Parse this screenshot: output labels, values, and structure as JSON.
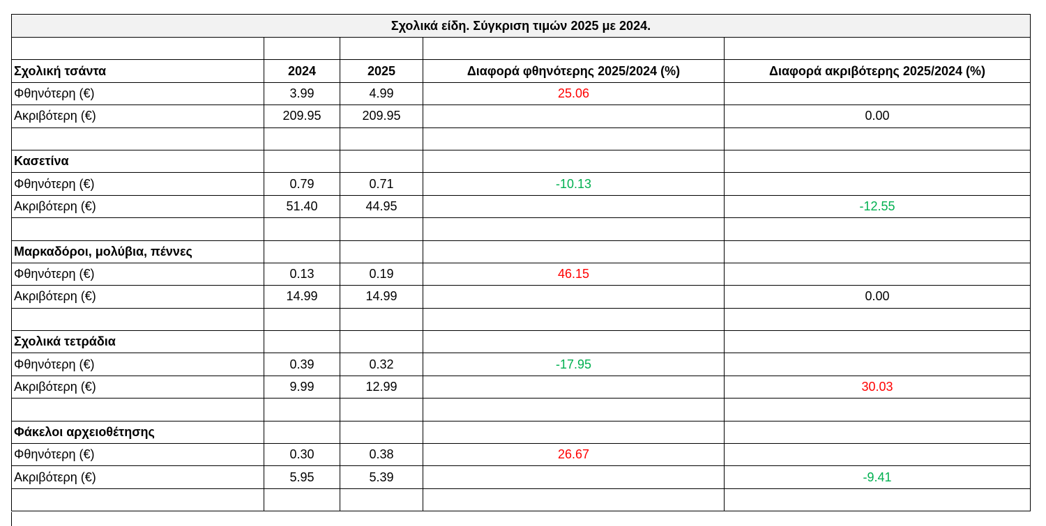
{
  "title": "Σχολικά είδη. Σύγκριση τιμών 2025 με 2024.",
  "header": [
    "2024",
    "2025",
    "Διαφορά φθηνότερης 2025/2024 (%)",
    "Διαφορά ακριβότερης 2025/2024 (%)"
  ],
  "groups": [
    {
      "name": "Σχολική τσάντα",
      "rows": [
        {
          "label": "Φθηνότερη (€)",
          "prices": [
            "3.99",
            "4.99"
          ],
          "diff_cheapest": "25.06",
          "color": "#ff0000"
        },
        {
          "label": "Ακριβότερη (€)",
          "prices": [
            "209.95",
            "209.95"
          ],
          "diff_priciest": "0.00",
          "color": "#000000"
        }
      ]
    },
    {
      "name": "Κασετίνα",
      "rows": [
        {
          "label": "Φθηνότερη (€)",
          "prices": [
            "0.79",
            "0.71"
          ],
          "diff_cheapest": "-10.13",
          "color": "#00b050"
        },
        {
          "label": "Ακριβότερη (€)",
          "prices": [
            "51.40",
            "44.95"
          ],
          "diff_priciest": "-12.55",
          "color": "#00b050"
        }
      ]
    },
    {
      "name": "Μαρκαδόροι, μολύβια, πέννες",
      "rows": [
        {
          "label": "Φθηνότερη (€)",
          "prices": [
            "0.13",
            "0.19"
          ],
          "diff_cheapest": "46.15",
          "color": "#ff0000"
        },
        {
          "label": "Ακριβότερη (€)",
          "prices": [
            "14.99",
            "14.99"
          ],
          "diff_priciest": "0.00",
          "color": "#000000"
        }
      ]
    },
    {
      "name": "Σχολικά τετράδια",
      "rows": [
        {
          "label": "Φθηνότερη (€)",
          "prices": [
            "0.39",
            "0.32"
          ],
          "diff_cheapest": "-17.95",
          "color": "#00b050"
        },
        {
          "label": "Ακριβότερη (€)",
          "prices": [
            "9.99",
            "12.99"
          ],
          "diff_priciest": "30.03",
          "color": "#ff0000"
        }
      ]
    },
    {
      "name": "Φάκελοι αρχειοθέτησης",
      "rows": [
        {
          "label": "Φθηνότερη (€)",
          "prices": [
            "0.30",
            "0.38"
          ],
          "diff_cheapest": "26.67",
          "color": "#ff0000"
        },
        {
          "label": "Ακριβότερη (€)",
          "prices": [
            "5.95",
            "5.39"
          ],
          "diff_priciest": "-9.41",
          "color": "#00b050"
        }
      ]
    }
  ]
}
